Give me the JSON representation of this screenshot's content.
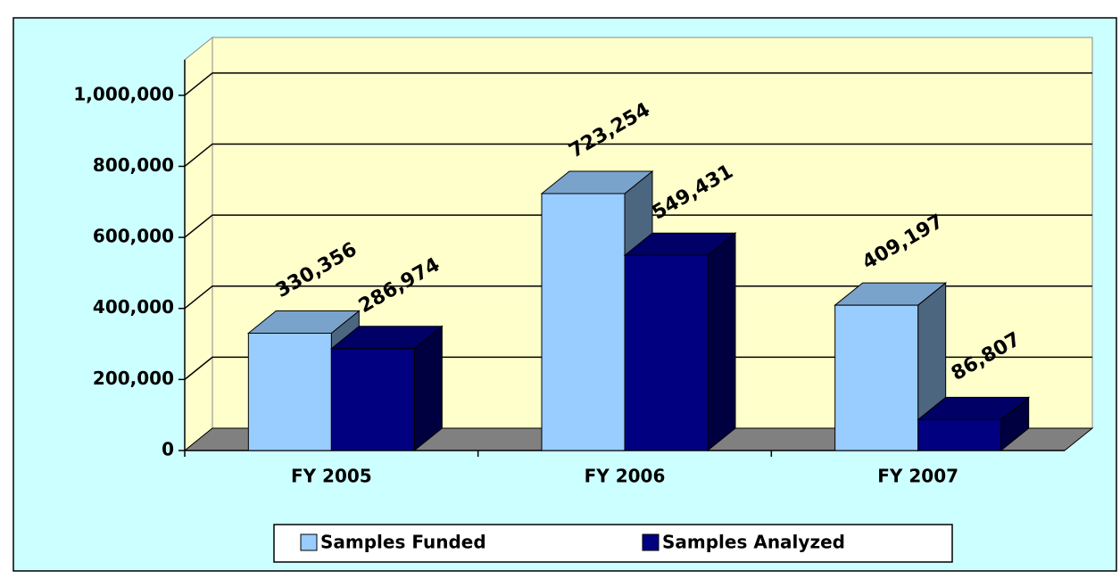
{
  "chart_data": {
    "type": "bar3d",
    "categories": [
      "FY 2005",
      "FY 2006",
      "FY 2007"
    ],
    "series": [
      {
        "name": "Samples Funded",
        "color": "#99ccff",
        "values": [
          330356,
          723254,
          409197
        ],
        "value_labels": [
          "330,356",
          "723,254",
          "409,197"
        ]
      },
      {
        "name": "Samples Analyzed",
        "color": "#000080",
        "values": [
          286974,
          549431,
          86807
        ],
        "value_labels": [
          "286,974",
          "549,431",
          "86,807"
        ]
      }
    ],
    "ylim": [
      0,
      1100000
    ],
    "yticks": [
      0,
      {
        "value": 200000,
        "label": "200,000"
      },
      {
        "value": 400000,
        "label": "400,000"
      },
      {
        "value": 600000,
        "label": "600,000"
      },
      {
        "value": 800000,
        "label": "800,000"
      },
      {
        "value": 1000000,
        "label": "1,000,000"
      }
    ],
    "grid": true,
    "legend": "bottom"
  }
}
